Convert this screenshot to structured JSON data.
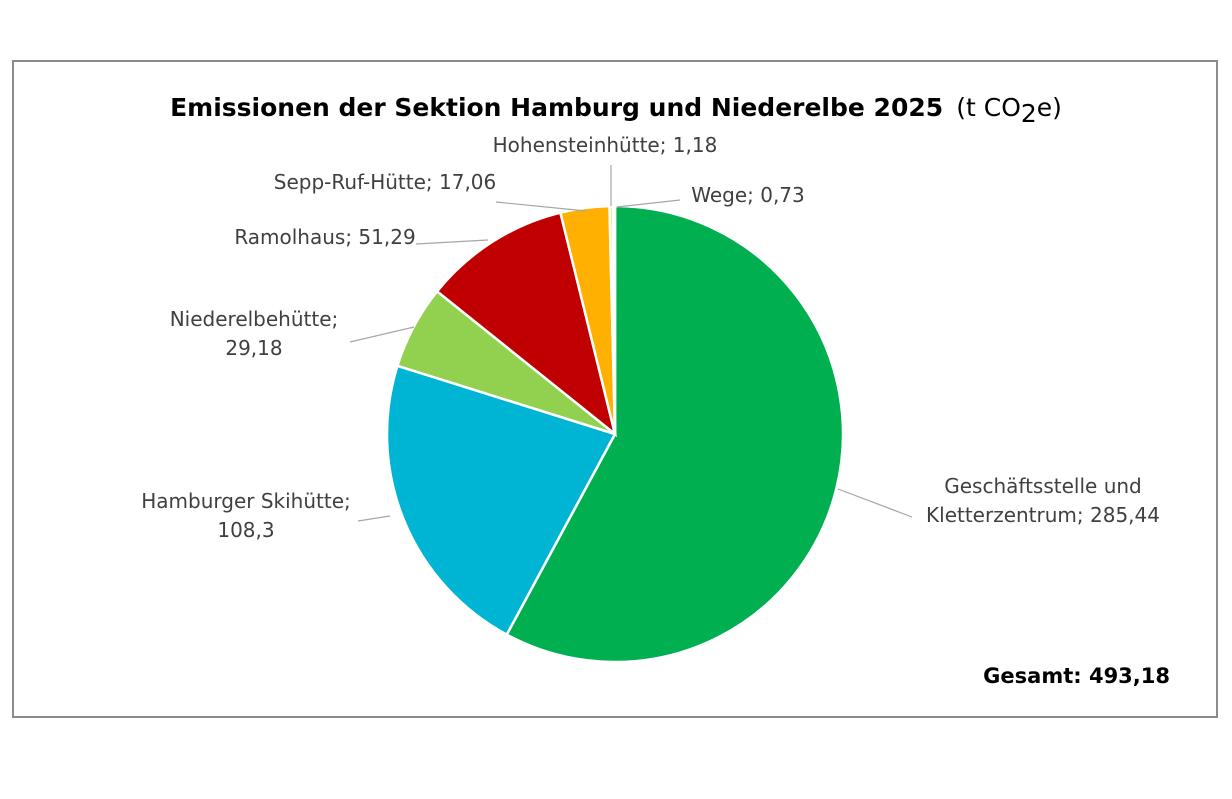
{
  "chart_data": {
    "type": "pie",
    "title": "Emissionen der Sektion Hamburg und Niederelbe 2025",
    "unit_prefix": "(t CO",
    "unit_sub": "2",
    "unit_suffix": "e)",
    "total_label": "Gesamt: 493,18",
    "slices": [
      {
        "label": "Geschäftsstelle und Kletterzentrum",
        "display": [
          "Geschäftsstelle und",
          "Kletterzentrum; 285,44"
        ],
        "value": 285.44,
        "color": "#00b050"
      },
      {
        "label": "Hamburger Skihütte",
        "display": [
          "Hamburger Skihütte;",
          "108,3"
        ],
        "value": 108.3,
        "color": "#00b4d4"
      },
      {
        "label": "Niederelbehütte",
        "display": [
          "Niederelbehütte;",
          "29,18"
        ],
        "value": 29.18,
        "color": "#92d050"
      },
      {
        "label": "Ramolhaus",
        "display": [
          "Ramolhaus; 51,29"
        ],
        "value": 51.29,
        "color": "#c00000"
      },
      {
        "label": "Sepp-Ruf-Hütte",
        "display": [
          "Sepp-Ruf-Hütte; 17,06"
        ],
        "value": 17.06,
        "color": "#ffb000"
      },
      {
        "label": "Hohensteinhütte",
        "display": [
          "Hohensteinhütte; 1,18"
        ],
        "value": 1.18,
        "color": "#ffd966"
      },
      {
        "label": "Wege",
        "display": [
          "Wege; 0,73"
        ],
        "value": 0.73,
        "color": "#a6a6a6"
      }
    ]
  }
}
